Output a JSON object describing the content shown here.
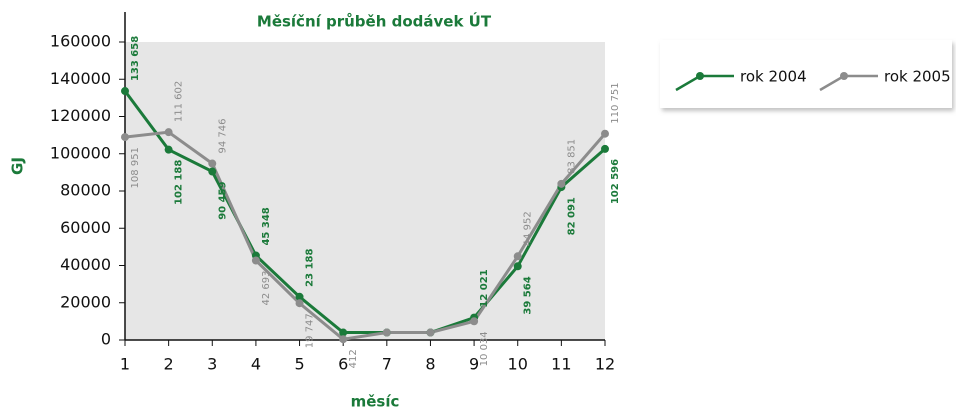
{
  "chart_data": {
    "type": "line",
    "title": "Měsíční průběh dodávek ÚT",
    "x_label": "měsíc",
    "y_label": "GJ",
    "x": [
      1,
      2,
      3,
      4,
      5,
      6,
      7,
      8,
      9,
      10,
      11,
      12
    ],
    "xlim": [
      1,
      12
    ],
    "xticks": [
      1,
      2,
      3,
      4,
      5,
      6,
      7,
      8,
      9,
      10,
      11,
      12
    ],
    "ylim": [
      0,
      160000
    ],
    "yticks": [
      0,
      20000,
      40000,
      60000,
      80000,
      100000,
      120000,
      140000,
      160000
    ],
    "legend": "right",
    "series": [
      {
        "name": "rok 2004",
        "color": "#1b7a3a",
        "values": [
          133658,
          102188,
          90459,
          45348,
          23188,
          4000,
          4000,
          4000,
          12021,
          39564,
          82091,
          102596
        ],
        "value_labels": [
          "133 658",
          "102 188",
          "90 459",
          "45 348",
          "23 188",
          null,
          null,
          null,
          "12 021",
          "39 564",
          "82 091",
          "102 596"
        ]
      },
      {
        "name": "rok 2005",
        "color": "#8c8c8c",
        "values": [
          108951,
          111602,
          94746,
          42693,
          19747,
          412,
          4000,
          4000,
          10034,
          44952,
          83851,
          110751
        ],
        "value_labels": [
          "108 951",
          "111 602",
          "94 746",
          "42 693",
          "19 747",
          "412",
          null,
          null,
          "10 034",
          "44 952",
          "83 851",
          "110 751"
        ]
      }
    ]
  }
}
